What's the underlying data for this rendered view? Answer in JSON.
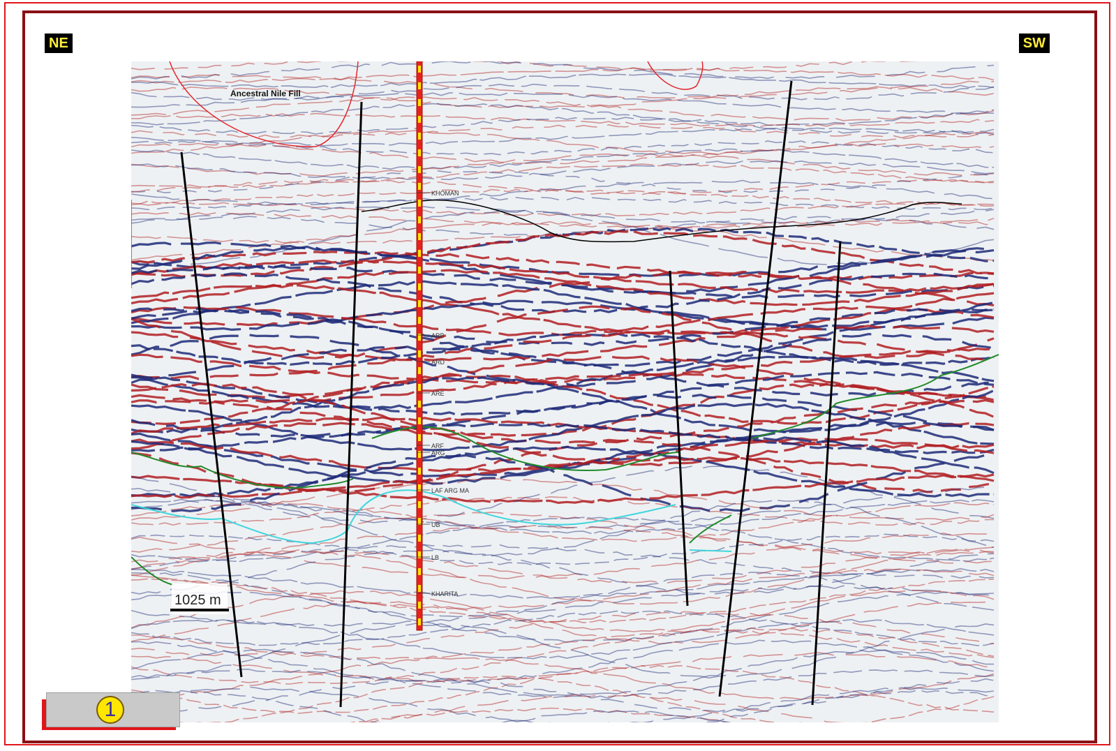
{
  "orientation": {
    "left": "NE",
    "right": "SW"
  },
  "annotations": {
    "fill_label": "Ancestral Nile Fill",
    "scale_label": "1025 m"
  },
  "well_markers": [
    {
      "label": "KHOMAN"
    },
    {
      "label": "ARB"
    },
    {
      "label": "ARD"
    },
    {
      "label": "ARE"
    },
    {
      "label": "ARF"
    },
    {
      "label": "ARG"
    },
    {
      "label": "LAF ARG MA"
    },
    {
      "label": "UB"
    },
    {
      "label": "LB"
    },
    {
      "label": "KHARITA"
    }
  ],
  "badge": {
    "number": "1"
  },
  "colors": {
    "frame_outer": "#e0161b",
    "frame_inner": "#8a0f16",
    "seismic_positive": "#b01e22",
    "seismic_negative": "#1d2a78",
    "fault_line": "#000000",
    "horizon_green": "#1f8a2a",
    "horizon_cyan": "#3fd6dc",
    "well_column": "#e5231c",
    "well_ticks": "#ffe600"
  }
}
